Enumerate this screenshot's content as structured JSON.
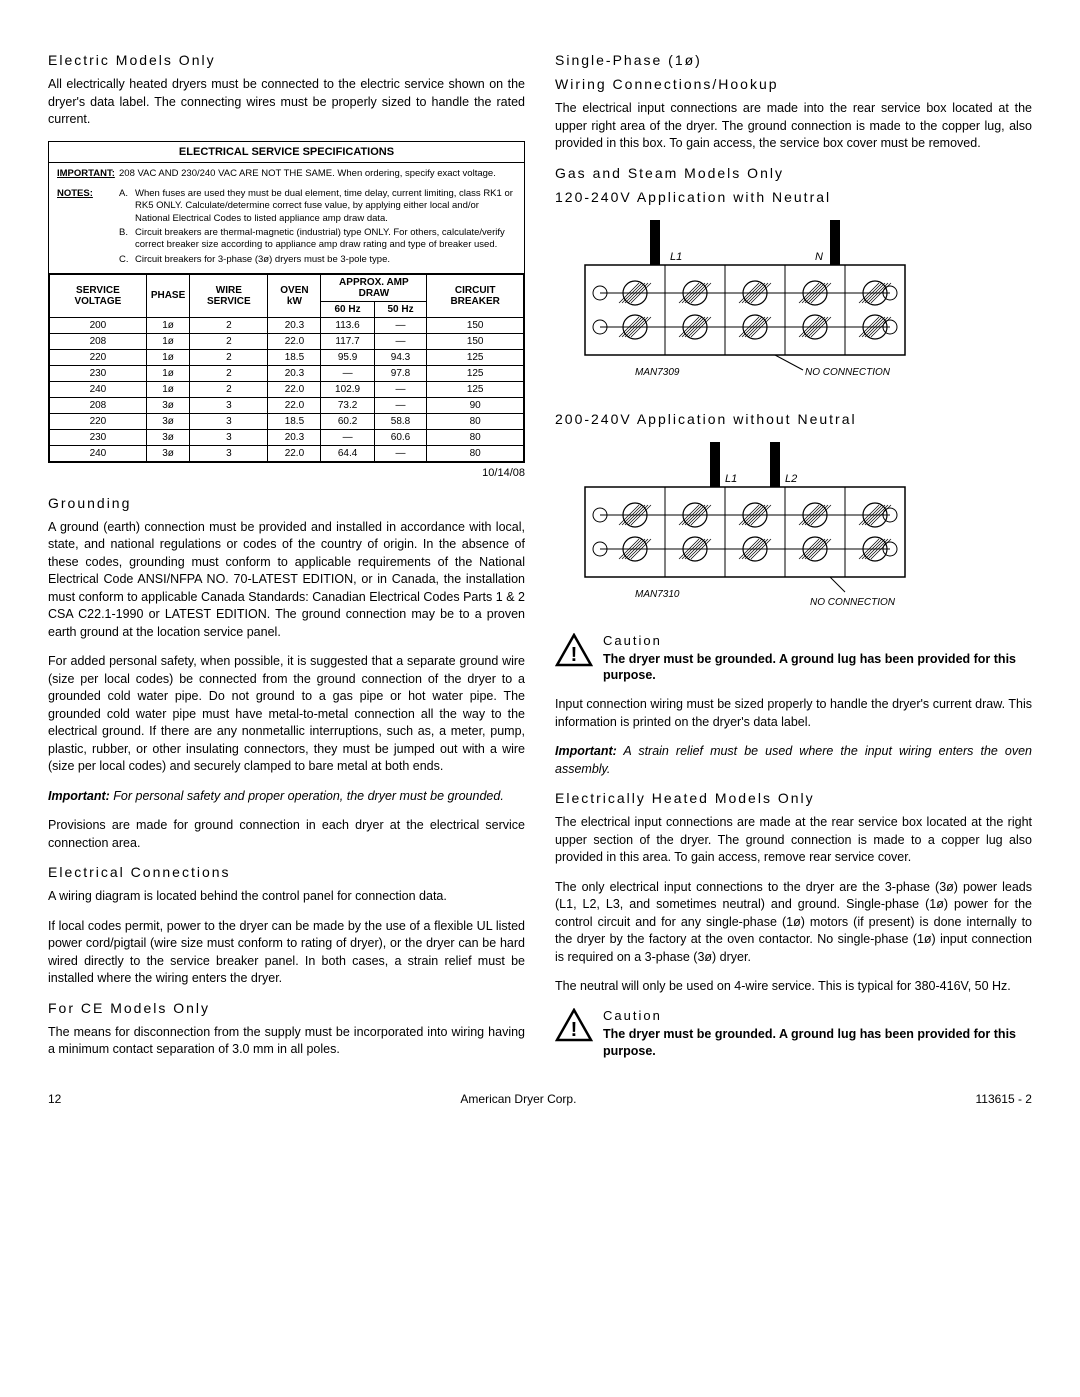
{
  "left": {
    "h_electric_models": "Electric Models Only",
    "p_electric_models": "All electrically heated dryers must be connected to the electric service shown on the dryer's data label.  The connecting wires must be properly sized to handle the rated current.",
    "spec_title": "ELECTRICAL SERVICE SPECIFICATIONS",
    "important_label": "IMPORTANT:",
    "important_text": "208 VAC AND 230/240 VAC ARE NOT THE SAME.  When ordering, specify exact voltage.",
    "notes_label": "NOTES:",
    "note_a_letter": "A.",
    "note_a_text": "When fuses are used they must be dual element, time delay, current limiting, class RK1 or RK5 ONLY. Calculate/determine correct fuse value, by applying either local and/or National Electrical Codes to listed appliance amp draw data.",
    "note_b_letter": "B.",
    "note_b_text": "Circuit breakers are thermal-magnetic (industrial) type ONLY. For others, calculate/verify correct breaker size according to appliance amp draw rating and type of breaker used.",
    "note_c_letter": "C.",
    "note_c_text": "Circuit breakers for 3-phase (3ø) dryers must be 3-pole type.",
    "th_service_voltage": "SERVICE VOLTAGE",
    "th_phase": "PHASE",
    "th_wire_service": "WIRE SERVICE",
    "th_oven_kw": "OVEN kW",
    "th_approx_amp": "APPROX. AMP DRAW",
    "th_60hz": "60 Hz",
    "th_50hz": "50 Hz",
    "th_circuit_breaker": "CIRCUIT BREAKER",
    "rows": [
      [
        "200",
        "1ø",
        "2",
        "20.3",
        "113.6",
        "—",
        "150"
      ],
      [
        "208",
        "1ø",
        "2",
        "22.0",
        "117.7",
        "—",
        "150"
      ],
      [
        "220",
        "1ø",
        "2",
        "18.5",
        "95.9",
        "94.3",
        "125"
      ],
      [
        "230",
        "1ø",
        "2",
        "20.3",
        "—",
        "97.8",
        "125"
      ],
      [
        "240",
        "1ø",
        "2",
        "22.0",
        "102.9",
        "—",
        "125"
      ],
      [
        "208",
        "3ø",
        "3",
        "22.0",
        "73.2",
        "—",
        "90"
      ],
      [
        "220",
        "3ø",
        "3",
        "18.5",
        "60.2",
        "58.8",
        "80"
      ],
      [
        "230",
        "3ø",
        "3",
        "20.3",
        "—",
        "60.6",
        "80"
      ],
      [
        "240",
        "3ø",
        "3",
        "22.0",
        "64.4",
        "—",
        "80"
      ]
    ],
    "spec_date": "10/14/08",
    "h_grounding": "Grounding",
    "p_grounding1": "A ground (earth) connection must be provided and installed in accordance with local, state, and national regulations or codes of the country of origin.  In the absence of these codes, grounding must conform to applicable requirements of the National Electrical Code ANSI/NFPA NO. 70-LATEST EDITION, or in Canada, the installation must conform to applicable Canada Standards: Canadian Electrical Codes Parts 1 & 2 CSA C22.1-1990 or LATEST EDITION.  The ground connection may be to a proven earth ground at the location service panel.",
    "p_grounding2": "For added personal safety, when possible, it is suggested that a separate ground wire (size per local codes) be connected from the ground connection of the dryer to a grounded cold water pipe.  Do not ground to a gas pipe or hot water pipe.  The grounded cold water pipe must have metal-to-metal connection all the way to the electrical ground.  If there are any nonmetallic interruptions, such as, a meter, pump, plastic, rubber, or other insulating connectors, they must be jumped out with a wire (size per local codes) and securely clamped to bare metal at both ends.",
    "important_lead": "Important:",
    "p_important_ground": " For personal safety and proper operation, the dryer must be grounded.",
    "p_provisions": "Provisions are made for ground connection in each dryer at the electrical service connection area.",
    "h_elec_conn": "Electrical Connections",
    "p_elec_conn1": "A wiring diagram is located behind the control panel for connection data.",
    "p_elec_conn2": "If local codes permit, power to the dryer can be made by the use of a flexible UL listed power cord/pigtail (wire size must conform to rating of dryer), or the dryer can be hard wired directly to the service breaker panel.  In both cases, a strain relief must be installed where the wiring enters the dryer.",
    "h_ce": "For CE Models Only",
    "p_ce": "The means for disconnection from the supply must be incorporated into wiring having a minimum contact separation of 3.0 mm in all poles."
  },
  "right": {
    "h_single_phase1": "Single-Phase (1ø)",
    "h_single_phase2": "Wiring Connections/Hookup",
    "p_single_phase": "The electrical input connections are made into the rear service box located at the upper right area of the dryer.  The ground connection is made to the copper lug, also provided in this box.  To gain access, the service box cover must be removed.",
    "h_gas_steam1": "Gas and Steam Models Only",
    "h_gas_steam2": "120-240V Application with Neutral",
    "diag1_l1": "L1",
    "diag1_n": "N",
    "diag1_id": "MAN7309",
    "diag1_noconn": "NO CONNECTION",
    "h_200_240": "200-240V Application without Neutral",
    "diag2_l1": "L1",
    "diag2_l2": "L2",
    "diag2_id": "MAN7310",
    "diag2_noconn": "NO CONNECTION",
    "caution_title": "Caution",
    "caution_body": "The dryer must be grounded.  A ground lug has been provided for this purpose.",
    "p_input_wiring": "Input connection wiring must be sized properly to handle the dryer's current draw.  This information is printed on the dryer's data label.",
    "important_lead": "Important:",
    "p_strain_relief": " A strain relief must be used where the input wiring enters the oven assembly.",
    "h_elec_heated": "Electrically Heated Models Only",
    "p_elec_heated1": "The electrical input connections are made at the rear service box located at the right upper section of the dryer. The ground connection is made to a copper lug also provided in this area.  To gain access, remove rear service cover.",
    "p_elec_heated2": "The only electrical input connections to the dryer are the 3-phase (3ø) power leads (L1, L2, L3, and sometimes neutral) and ground.  Single-phase (1ø) power for the control circuit and for any single-phase (1ø) motors (if present) is done internally to the dryer by the factory at the oven contactor.  No single-phase (1ø) input connection is required on a 3-phase (3ø) dryer.",
    "p_elec_heated3": "The neutral will only be used on 4-wire service.  This is typical for 380-416V, 50 Hz."
  },
  "footer": {
    "page": "12",
    "company": "American Dryer Corp.",
    "docnum": "113615 - 2"
  },
  "colors": {
    "line": "#000000",
    "hatch": "#000000"
  }
}
